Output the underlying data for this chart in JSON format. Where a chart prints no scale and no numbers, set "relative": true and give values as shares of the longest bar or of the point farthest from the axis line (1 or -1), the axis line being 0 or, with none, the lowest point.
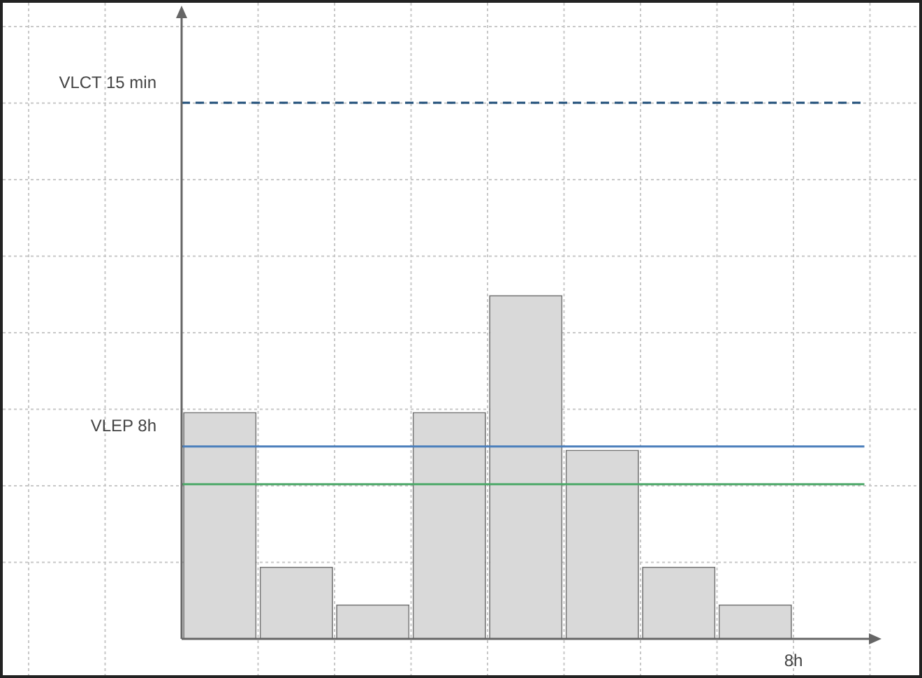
{
  "chart_data": {
    "type": "bar",
    "relative": true,
    "xlabel": "8h",
    "categories": [
      null,
      null,
      null,
      null,
      null,
      null,
      null,
      null
    ],
    "values": [
      0.66,
      0.21,
      0.1,
      0.66,
      1,
      0.55,
      0.21,
      0.1
    ],
    "color": "#d9d9d9",
    "ref_lines": [
      {
        "axis": "y",
        "value": 1.56,
        "label": "VLCT 15 min",
        "color": "#1f4e79",
        "line_style": "dashed"
      },
      {
        "axis": "y",
        "value": 0.56,
        "label": "VLEP 8h",
        "color": "#4a7ebb",
        "line_style": "solid"
      },
      {
        "axis": "y",
        "value": 0.45,
        "label": null,
        "color": "#4ea96a",
        "line_style": "solid"
      }
    ],
    "grid": true,
    "legend": false
  }
}
